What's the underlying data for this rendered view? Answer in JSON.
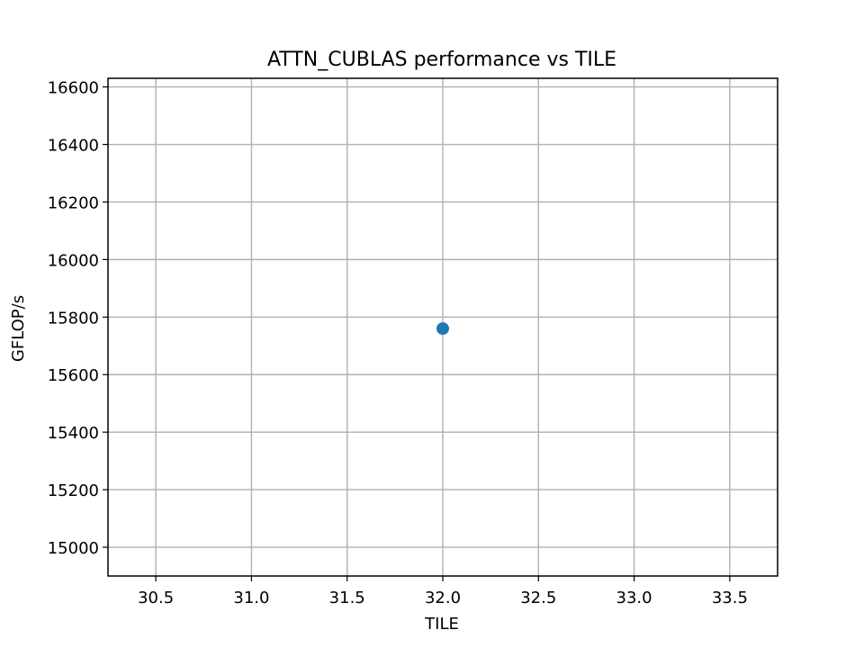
{
  "chart_data": {
    "type": "scatter",
    "title": "ATTN_CUBLAS performance vs TILE",
    "xlabel": "TILE",
    "ylabel": "GFLOP/s",
    "xlim": [
      30.25,
      33.75
    ],
    "ylim": [
      14900,
      16630
    ],
    "xticks": [
      30.5,
      31.0,
      31.5,
      32.0,
      32.5,
      33.0,
      33.5
    ],
    "xtick_labels": [
      "30.5",
      "31.0",
      "31.5",
      "32.0",
      "32.5",
      "33.0",
      "33.5"
    ],
    "yticks": [
      15000,
      15200,
      15400,
      15600,
      15800,
      16000,
      16200,
      16400,
      16600
    ],
    "ytick_labels": [
      "15000",
      "15200",
      "15400",
      "15600",
      "15800",
      "16000",
      "16200",
      "16400",
      "16600"
    ],
    "grid": true,
    "series": [
      {
        "color": "#1f77b4",
        "marker": "circle",
        "points": [
          {
            "x": 32.0,
            "y": 15760
          }
        ]
      }
    ]
  }
}
